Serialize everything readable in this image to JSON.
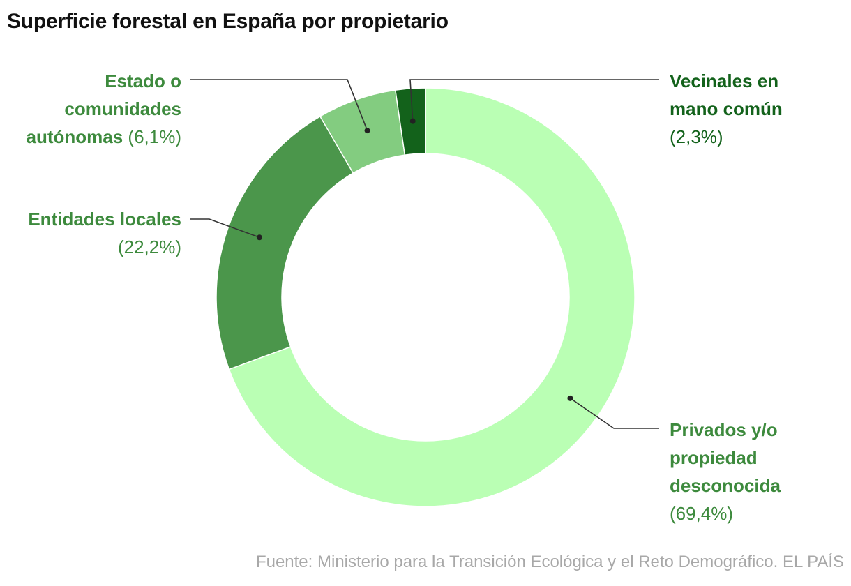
{
  "chart_data": {
    "type": "pie",
    "donut": true,
    "title": "Superficie forestal en España por propietario",
    "categories": [
      "Privados y/o propiedad desconocida",
      "Entidades locales",
      "Estado o comunidades autónomas",
      "Vecinales en mano común"
    ],
    "values": [
      69.4,
      22.2,
      6.1,
      2.3
    ],
    "value_labels": [
      "(69,4%)",
      "(22,2%)",
      "(6,1%)",
      "(2,3%)"
    ],
    "colors": [
      "#baffb4",
      "#4b964b",
      "#83cc80",
      "#13621b"
    ],
    "label_colors": [
      "#3d8a3d",
      "#3d8a3d",
      "#3d8a3d",
      "#13621b"
    ],
    "legend": "none"
  },
  "source": "Fuente: Ministerio para la Transición Ecológica y el Reto Demográfico. EL PAÍS"
}
